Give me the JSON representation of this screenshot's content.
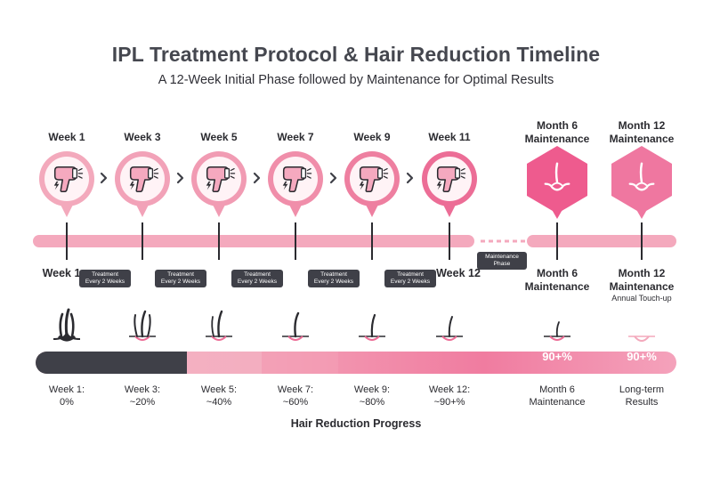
{
  "header": {
    "title": "IPL Treatment Protocol & Hair Reduction Timeline",
    "subtitle": "A 12-Week Initial Phase followed by Maintenance for Optimal Results"
  },
  "top_labels": [
    "Week 1",
    "Week 3",
    "Week 5",
    "Week 7",
    "Week 9",
    "Week 11"
  ],
  "month_top": [
    {
      "line1": "Month 6",
      "line2": "Maintenance"
    },
    {
      "line1": "Month 12",
      "line2": "Maintenance"
    }
  ],
  "icons": {
    "device": "ipl-device-icon",
    "hair": "hair-follicle-icon",
    "arrow": "chevron-right-icon"
  },
  "timeline": {
    "start_label": "Week 1",
    "end_label": "Week 12",
    "treatment_tag": {
      "line1": "Treatment",
      "line2": "Every 2 Weeks"
    },
    "maintenance_tag": {
      "line1": "Maintenance",
      "line2": "Phase"
    },
    "month6": {
      "line1": "Month 6",
      "line2": "Maintenance"
    },
    "month12": {
      "line1": "Month 12",
      "line2": "Maintenance",
      "note": "Annual Touch-up"
    }
  },
  "progress": {
    "title": "Hair Reduction Progress",
    "bar_labels": [
      "90+%",
      "90+%"
    ],
    "bottom_labels": [
      {
        "line1": "Week 1:",
        "line2": "0%"
      },
      {
        "line1": "Week 3:",
        "line2": "~20%"
      },
      {
        "line1": "Week 5:",
        "line2": "~40%"
      },
      {
        "line1": "Week 7:",
        "line2": "~60%"
      },
      {
        "line1": "Week 9:",
        "line2": "~80%"
      },
      {
        "line1": "Week 12:",
        "line2": "~90+%"
      },
      {
        "line1": "Month 6",
        "line2": "Maintenance"
      },
      {
        "line1": "Long-term",
        "line2": "Results"
      }
    ]
  },
  "colors": {
    "pink": "#ec6d96",
    "pink_light": "#f5b6c8",
    "bar_track": "#f4a9bd",
    "dark": "#3f4048",
    "magenta": "#ee5b8e"
  }
}
